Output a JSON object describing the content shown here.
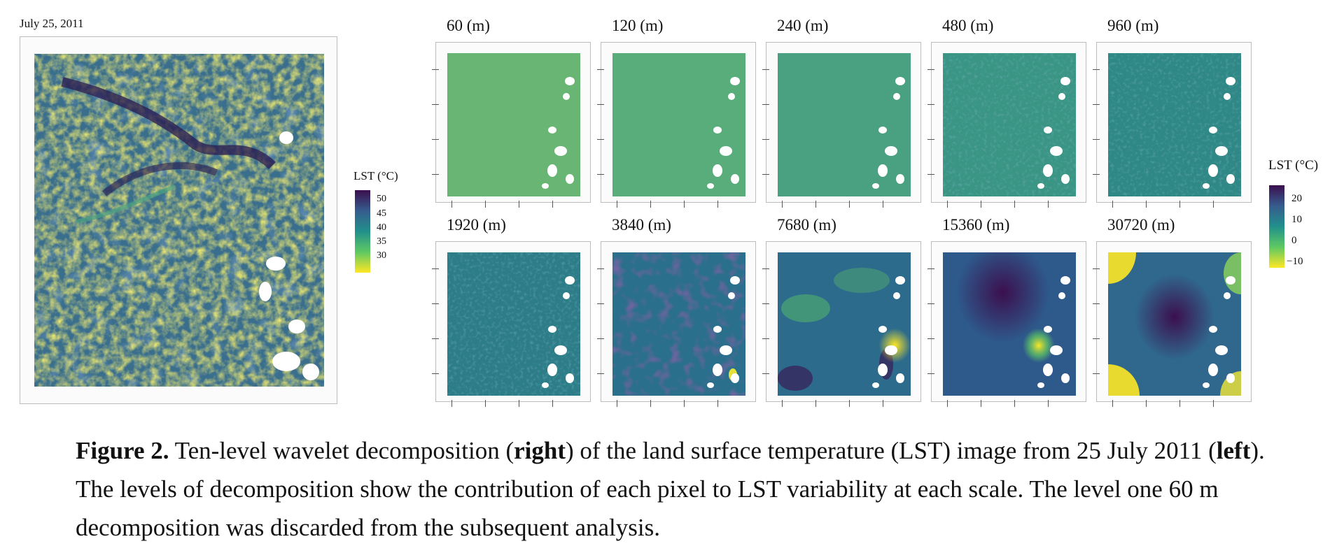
{
  "date_label": "July 25, 2011",
  "left_legend": {
    "title": "LST (°C)",
    "labels": [
      "50",
      "45",
      "40",
      "35",
      "30"
    ],
    "colors": [
      "#3b0f4f",
      "#365c8d",
      "#21908c",
      "#5ec962",
      "#fde725"
    ]
  },
  "panels": [
    {
      "label": "60 (m)",
      "style": "flat",
      "color": "#69b573"
    },
    {
      "label": "120 (m)",
      "style": "flat",
      "color": "#58ad7a"
    },
    {
      "label": "240 (m)",
      "style": "flat",
      "color": "#4aa181"
    },
    {
      "label": "480 (m)",
      "style": "noise",
      "color": "#3a9584"
    },
    {
      "label": "960 (m)",
      "style": "noise",
      "color": "#2f8885"
    },
    {
      "label": "1920 (m)",
      "style": "noise",
      "color": "#2d7d89"
    },
    {
      "label": "3840 (m)",
      "style": "blotch",
      "color": "#2a6f8b"
    },
    {
      "label": "7680 (m)",
      "style": "smooth",
      "color": "#2d6b8c"
    },
    {
      "label": "15360 (m)",
      "style": "blob",
      "color": "#2e5a8b"
    },
    {
      "label": "30720 (m)",
      "style": "saddle",
      "color": "#30688d"
    }
  ],
  "right_legend": {
    "title": "LST (°C)",
    "labels": [
      "20",
      "10",
      "0",
      "−10"
    ]
  },
  "caption": {
    "fig": "Figure 2.",
    "t1": " Ten-level wavelet decomposition (",
    "right": "right",
    "t2": ") of the land surface temperature (LST) image from 25 July 2011 (",
    "left": "left",
    "t3": "). The levels of decomposition show the contribution of each pixel to LST variability at each scale. The level one 60 m decomposition was discarded from the subsequent analysis."
  }
}
